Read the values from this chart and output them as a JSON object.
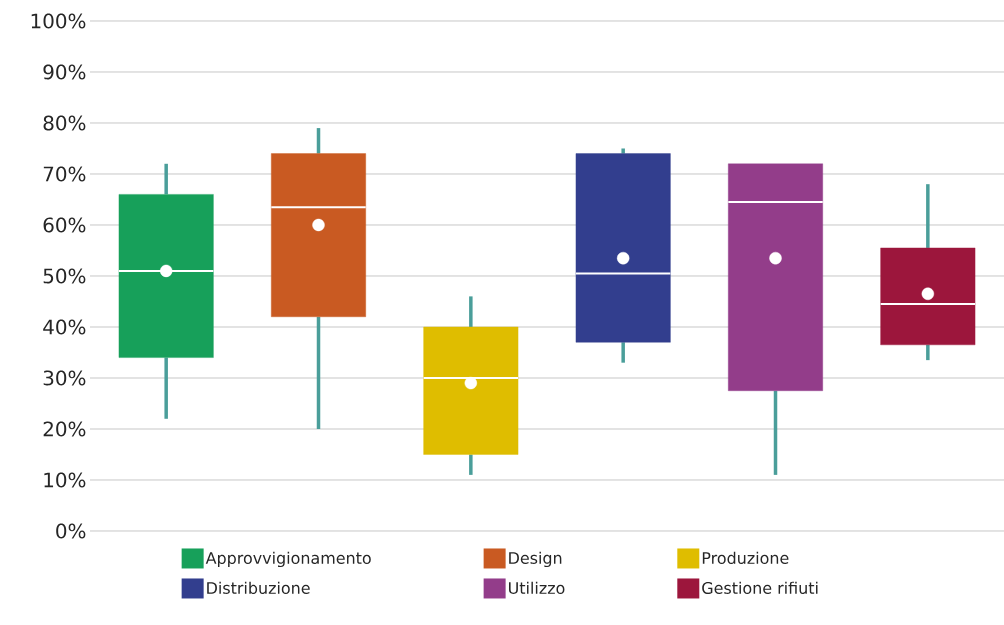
{
  "chart_data": {
    "type": "box",
    "categories": [
      null,
      null,
      null,
      null,
      null,
      null
    ],
    "series": [
      {
        "name": "Approvvigionamento",
        "color": "#17a05a",
        "boxes": [
          {
            "low": 22,
            "q1": 34,
            "median": 51,
            "q3": 66,
            "high": 72,
            "mean": 51
          },
          null,
          null,
          null,
          null,
          null
        ]
      },
      {
        "name": "Design",
        "color": "#c95a22",
        "boxes": [
          null,
          {
            "low": 20,
            "q1": 42,
            "median": 63.5,
            "q3": 74,
            "high": 79,
            "mean": 60
          },
          null,
          null,
          null,
          null
        ]
      },
      {
        "name": "Produzione",
        "color": "#dfbd00",
        "boxes": [
          null,
          null,
          {
            "low": 11,
            "q1": 15,
            "median": 30,
            "q3": 40,
            "high": 46,
            "mean": 29
          },
          null,
          null,
          null
        ]
      },
      {
        "name": "Distribuzione",
        "color": "#323e8e",
        "boxes": [
          null,
          null,
          null,
          {
            "low": 33,
            "q1": 37,
            "median": 50.5,
            "q3": 74,
            "high": 75,
            "mean": 53.5
          },
          null,
          null
        ]
      },
      {
        "name": "Utilizzo",
        "color": "#933d8a",
        "boxes": [
          null,
          null,
          null,
          null,
          {
            "low": 11,
            "q1": 27.5,
            "median": 64.5,
            "q3": 72,
            "high": 72,
            "mean": 53.5
          },
          null
        ]
      },
      {
        "name": "Gestione rifiuti",
        "color": "#9c163c",
        "boxes": [
          null,
          null,
          null,
          null,
          null,
          {
            "low": 33.5,
            "q1": 36.5,
            "median": 44.5,
            "q3": 55.5,
            "high": 68,
            "mean": 46.5
          }
        ]
      }
    ],
    "ylim": [
      0,
      100
    ],
    "yticks": [
      {
        "value": 0,
        "label": "0%"
      },
      {
        "value": 10,
        "label": "10%"
      },
      {
        "value": 20,
        "label": "20%"
      },
      {
        "value": 30,
        "label": "30%"
      },
      {
        "value": 40,
        "label": "40%"
      },
      {
        "value": 50,
        "label": "50%"
      },
      {
        "value": 60,
        "label": "60%"
      },
      {
        "value": 70,
        "label": "70%"
      },
      {
        "value": 80,
        "label": "80%"
      },
      {
        "value": 90,
        "label": "90%"
      },
      {
        "value": 100,
        "label": "100%"
      }
    ],
    "grid": "y",
    "tick_labels": "y",
    "legend": "bottom"
  }
}
